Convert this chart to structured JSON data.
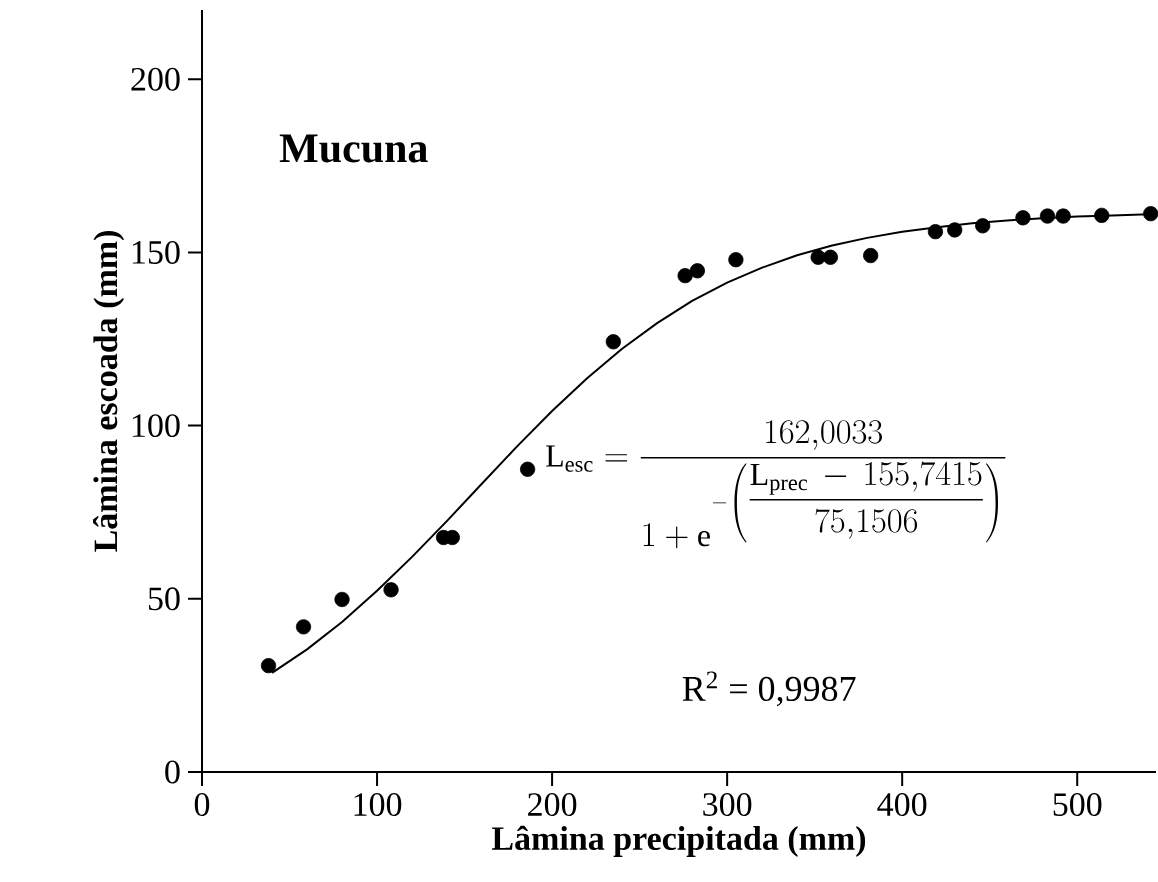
{
  "chart_data": {
    "type": "scatter",
    "title": "Mucuna",
    "xlabel": "Lâmina precipitada (mm)",
    "ylabel": "Lâmina escoada (mm)",
    "xlim": [
      0,
      545
    ],
    "ylim": [
      0,
      220
    ],
    "xticks": [
      0,
      100,
      200,
      300,
      400,
      500
    ],
    "yticks": [
      0,
      50,
      100,
      150,
      200
    ],
    "grid": false,
    "series": [
      {
        "color": "#000000",
        "marker": "circle",
        "x": [
          38,
          58,
          80,
          108,
          138,
          143,
          186,
          235,
          276,
          283,
          305,
          352,
          359,
          382,
          419,
          430,
          446,
          469,
          483,
          492,
          514,
          542
        ],
        "values": [
          30.7,
          41.9,
          49.8,
          52.6,
          67.7,
          67.7,
          87.4,
          124.2,
          143.3,
          144.7,
          147.9,
          148.6,
          148.6,
          149.1,
          156,
          156.5,
          157.7,
          160,
          160.5,
          160.5,
          160.7,
          161.2
        ]
      },
      {
        "type": "line",
        "color": "#000000",
        "marker": "none",
        "line_style": "solid",
        "x": [
          40,
          60,
          80,
          100,
          120,
          140,
          160,
          180,
          200,
          220,
          240,
          260,
          280,
          300,
          320,
          340,
          360,
          380,
          400,
          420,
          440,
          460,
          480,
          500,
          520,
          545
        ],
        "values": [
          28.6,
          35.4,
          43.3,
          52.3,
          62.1,
          72.5,
          83.3,
          94.0,
          104.2,
          113.7,
          122.2,
          129.6,
          136.0,
          141.3,
          145.6,
          149.2,
          152.0,
          154.2,
          156.0,
          157.3,
          158.4,
          159.2,
          159.9,
          160.4,
          160.7,
          161.1
        ]
      }
    ],
    "annotations": [
      "\\mathrm{L_{esc}} = \\frac{162{,}0033}{1+\\mathrm{e}^{-\\left(\\dfrac{\\mathrm{L_{prec}}\\,-\\,155{,}7415}{75{,}1506}\\right)}}",
      "R$^{2}$ = 0,9987"
    ]
  }
}
